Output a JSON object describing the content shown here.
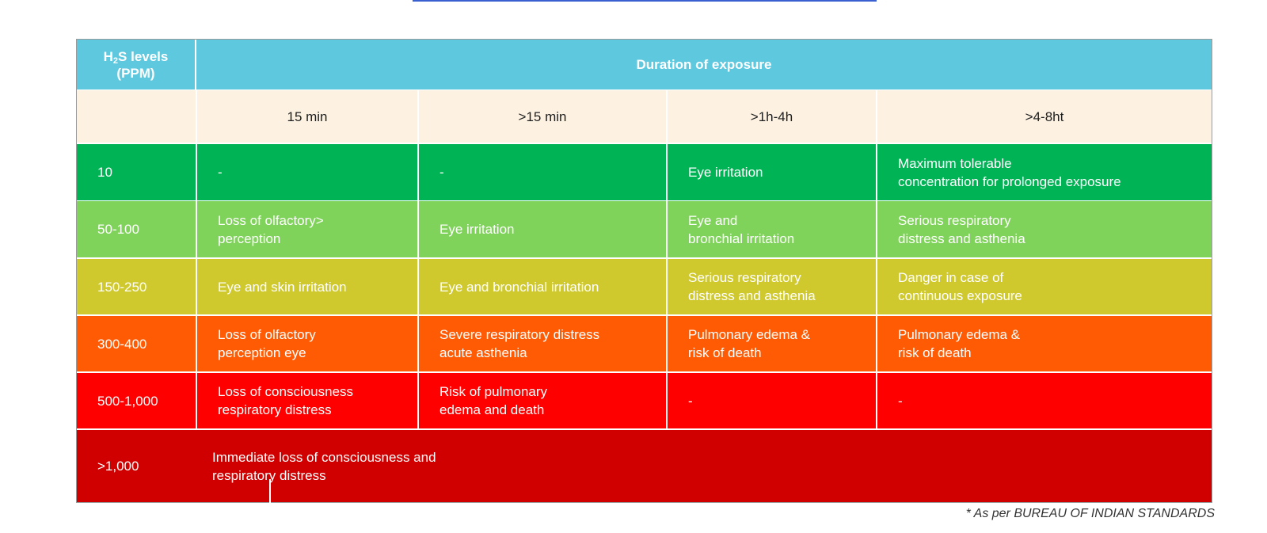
{
  "header": {
    "level_prefix": "H",
    "level_sub": "2",
    "level_suffix": "S levels",
    "level_unit": "(PPM)",
    "duration_title": "Duration of exposure"
  },
  "durations": [
    "15 min",
    ">15 min",
    ">1h-4h",
    ">4-8ht"
  ],
  "rows": [
    {
      "level": "10",
      "cells": [
        "-",
        "-",
        "Eye irritation",
        "Maximum tolerable\nconcentration for prolonged exposure"
      ]
    },
    {
      "level": "50-100",
      "cells": [
        "Loss of olfactory>\nperception",
        "Eye irritation",
        "Eye and\nbronchial irritation",
        "Serious respiratory\ndistress and asthenia"
      ]
    },
    {
      "level": "150-250",
      "cells": [
        "Eye and skin irritation",
        "Eye and bronchial irritation",
        "Serious respiratory\ndistress and asthenia",
        "Danger in case of\ncontinuous exposure"
      ]
    },
    {
      "level": "300-400",
      "cells": [
        "Loss of olfactory\nperception eye",
        "Severe respiratory distress\nacute asthenia",
        "Pulmonary edema &\nrisk of death",
        "Pulmonary edema &\nrisk of death"
      ]
    },
    {
      "level": "500-1,000",
      "cells": [
        "Loss of consciousness\nrespiratory distress",
        "Risk of pulmonary\nedema and death",
        "-",
        "-"
      ]
    }
  ],
  "last_row": {
    "level": ">1,000",
    "text": "Immediate loss of consciousness and\nrespiratory distress"
  },
  "footnote": "* As per BUREAU OF INDIAN STANDARDS",
  "colors": {
    "header": "#5ec8df",
    "subheader": "#fdf2e2",
    "rows": [
      "#00b354",
      "#7fd35a",
      "#cfc92e",
      "#ff5b05",
      "#fe0000"
    ],
    "last_row": "#d10000"
  }
}
